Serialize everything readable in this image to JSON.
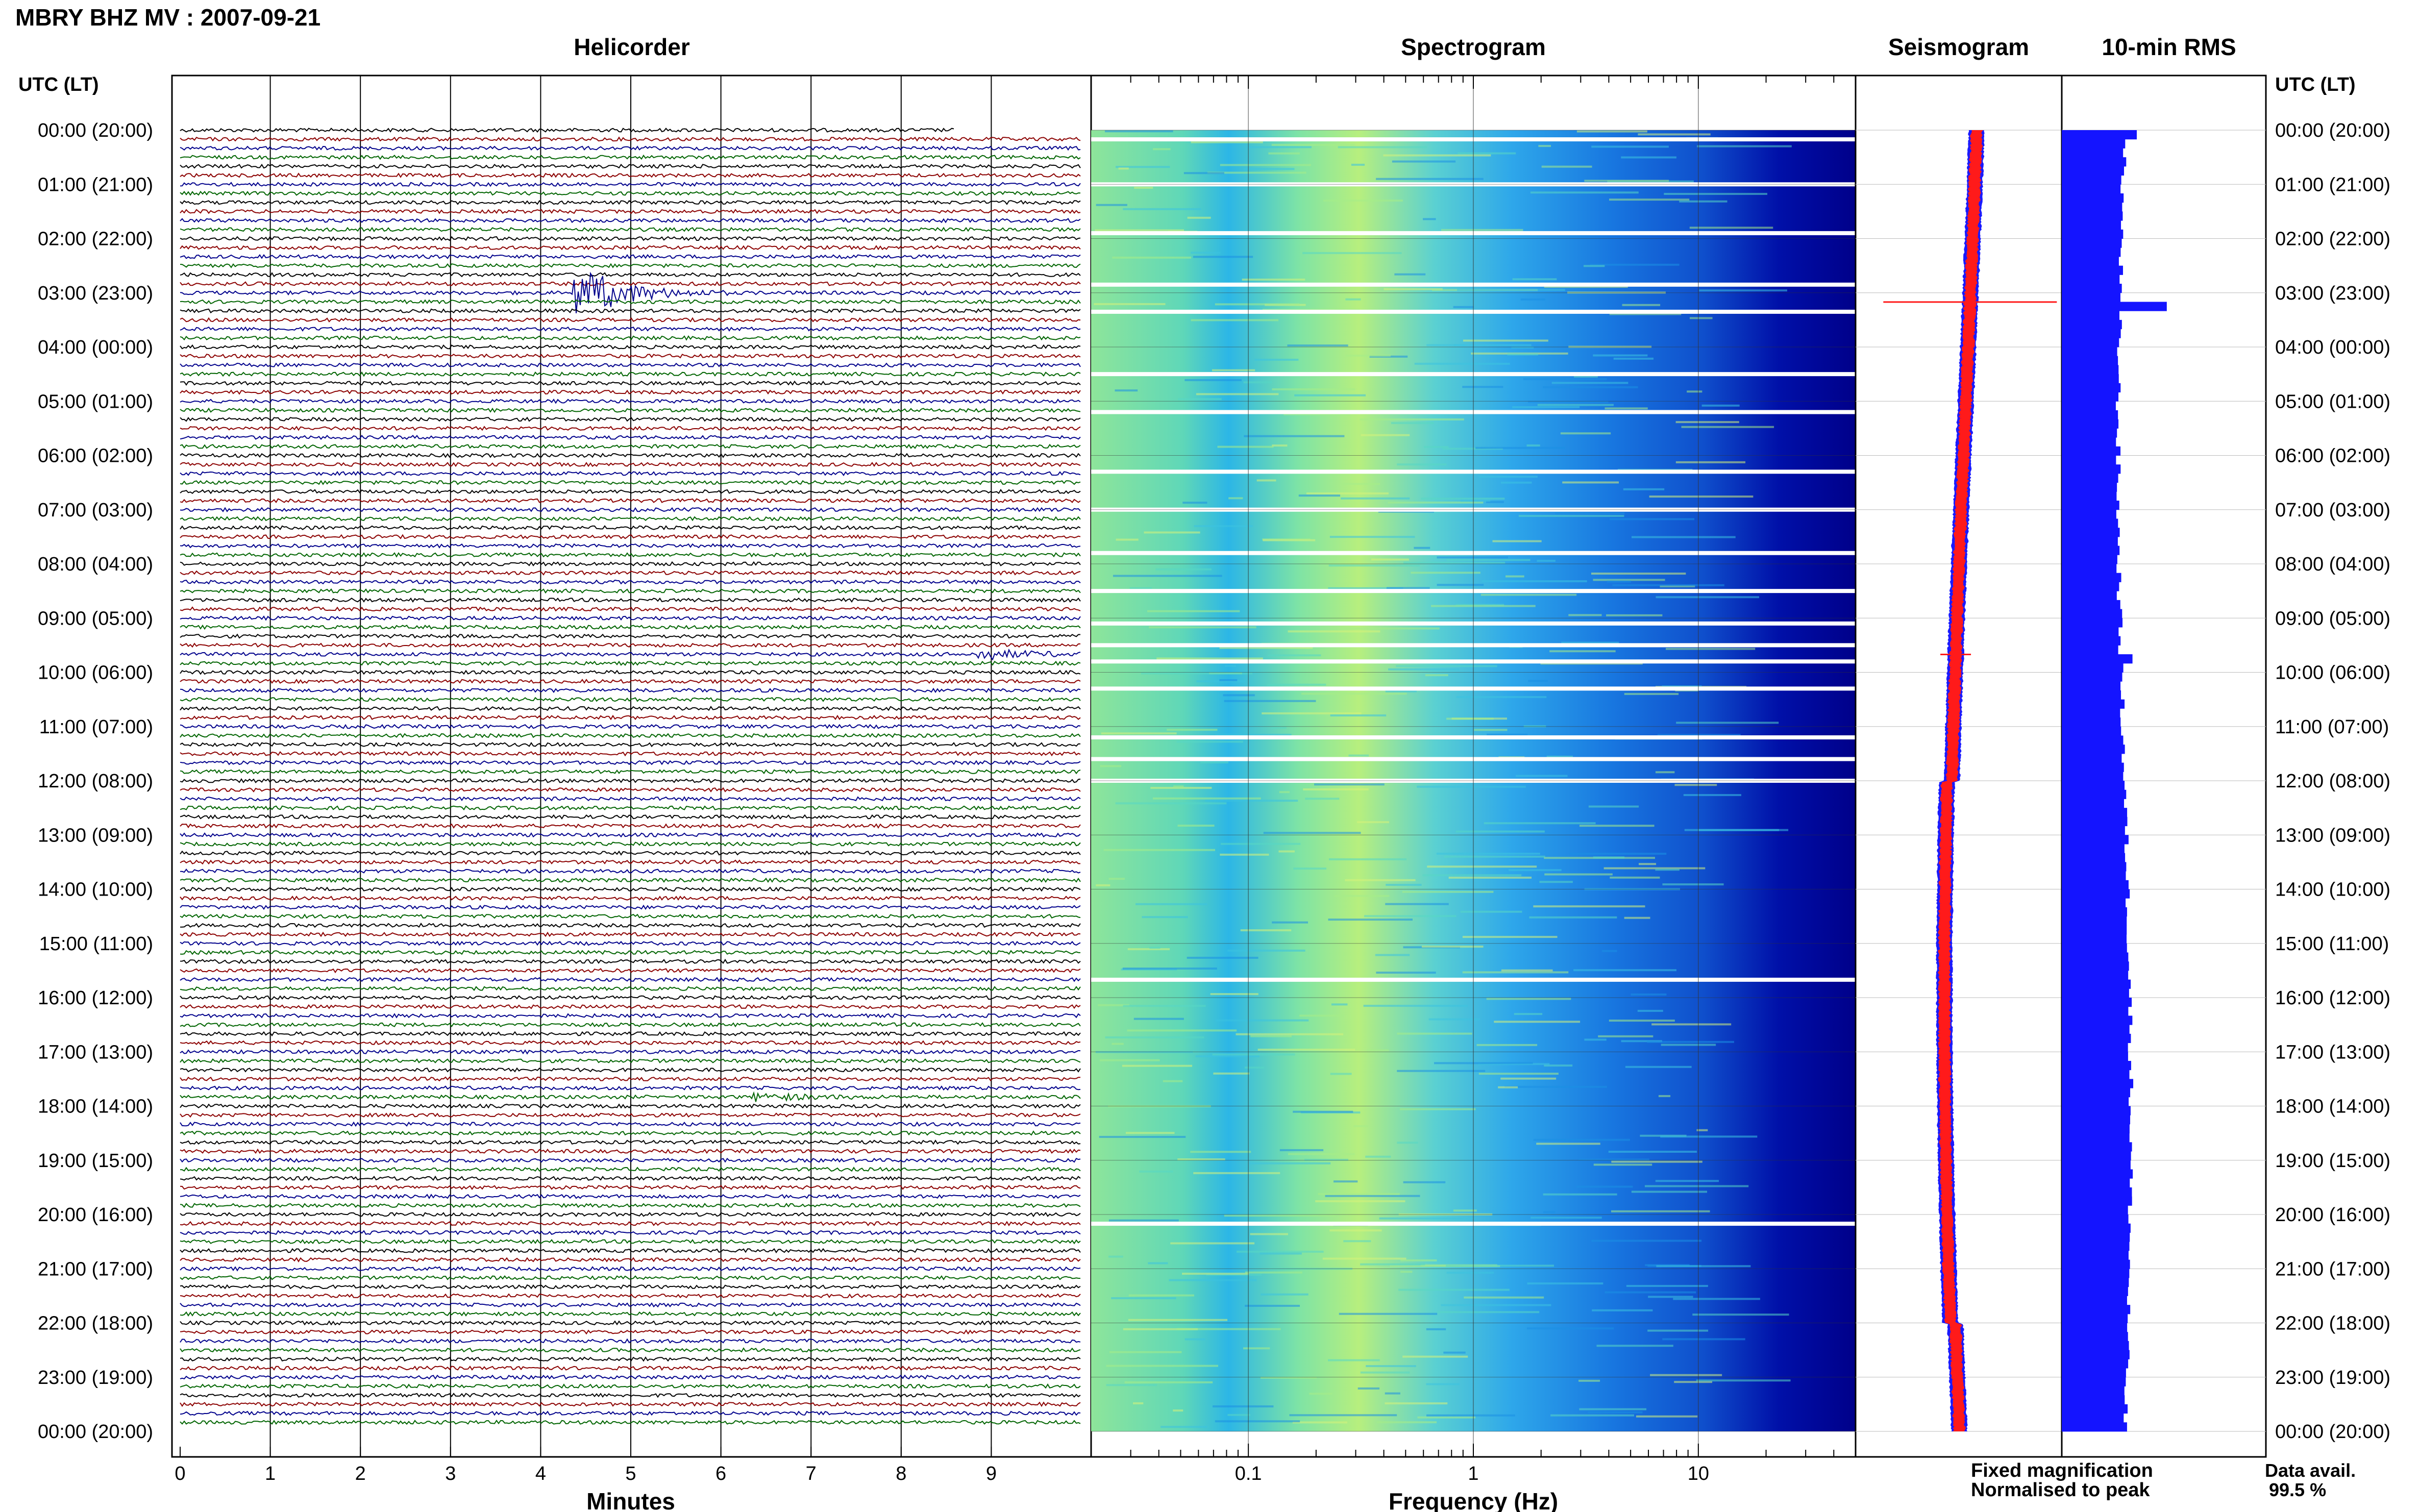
{
  "page_title": "MBRY BHZ MV : 2007-09-21",
  "panels": {
    "helicorder": "Helicorder",
    "spectrogram": "Spectrogram",
    "seismogram": "Seismogram",
    "rms": "10-min RMS"
  },
  "axis_header_left": "UTC (LT)",
  "axis_header_right": "UTC (LT)",
  "time_labels": [
    "00:00 (20:00)",
    "01:00 (21:00)",
    "02:00 (22:00)",
    "03:00 (23:00)",
    "04:00 (00:00)",
    "05:00 (01:00)",
    "06:00 (02:00)",
    "07:00 (03:00)",
    "08:00 (04:00)",
    "09:00 (05:00)",
    "10:00 (06:00)",
    "11:00 (07:00)",
    "12:00 (08:00)",
    "13:00 (09:00)",
    "14:00 (10:00)",
    "15:00 (11:00)",
    "16:00 (12:00)",
    "17:00 (13:00)",
    "18:00 (14:00)",
    "19:00 (15:00)",
    "20:00 (16:00)",
    "21:00 (17:00)",
    "22:00 (18:00)",
    "23:00 (19:00)",
    "00:00 (20:00)"
  ],
  "legend": {
    "fixed_magnification": "Fixed magnification",
    "normalised_to_peak": "Normalised to peak",
    "fixed_color": "#1a1aff",
    "normalised_color": "#ff1a1a"
  },
  "data_availability": {
    "label": "Data avail.",
    "value": "99.5 %"
  },
  "colors": {
    "trace_cycle": [
      "#000000",
      "#8b0000",
      "#00008b",
      "#006400"
    ],
    "rms_bar": "#1414ff",
    "spectro_low": "#7ee0a0",
    "spectro_mid": "#33c6e8",
    "spectro_high": "#00008f"
  },
  "chart_data": [
    {
      "type": "line",
      "name": "helicorder",
      "title": "Helicorder",
      "xlabel": "Minutes",
      "x_ticks": [
        "0",
        "1",
        "2",
        "3",
        "4",
        "5",
        "6",
        "7",
        "8",
        "9"
      ],
      "xlim": [
        0,
        10
      ],
      "rows": 144,
      "row_minutes": 10,
      "events": [
        {
          "hour": 3.0,
          "minute": 4.5,
          "amplitude": "large"
        },
        {
          "hour": 9.67,
          "minute": 9.0,
          "amplitude": "medium"
        },
        {
          "hour": 17.83,
          "minute": 6.5,
          "amplitude": "small"
        }
      ]
    },
    {
      "type": "heatmap",
      "name": "spectrogram",
      "title": "Spectrogram",
      "xlabel": "Frequency (Hz)",
      "x_scale": "log",
      "x_ticks": [
        "0.1",
        "1",
        "10"
      ],
      "xlim": [
        0.02,
        50
      ],
      "gaps_hours": [
        0.17,
        1.0,
        1.9,
        2.85,
        3.35,
        4.5,
        5.2,
        6.3,
        7.0,
        7.8,
        8.5,
        9.1,
        9.5,
        9.8,
        10.3,
        11.2,
        11.6,
        12.0,
        15.67,
        20.17
      ]
    },
    {
      "type": "line",
      "name": "seismogram",
      "title": "Seismogram",
      "series": [
        {
          "name": "Fixed magnification",
          "color": "#1a1aff"
        },
        {
          "name": "Normalised to peak",
          "color": "#ff1a1a"
        }
      ]
    },
    {
      "type": "bar",
      "name": "rms",
      "title": "10-min RMS",
      "orientation": "horizontal",
      "bar_count": 144,
      "spikes": [
        {
          "hour": 3.17,
          "relative": 0.98
        },
        {
          "hour": 9.67,
          "relative": 0.66
        }
      ]
    }
  ]
}
